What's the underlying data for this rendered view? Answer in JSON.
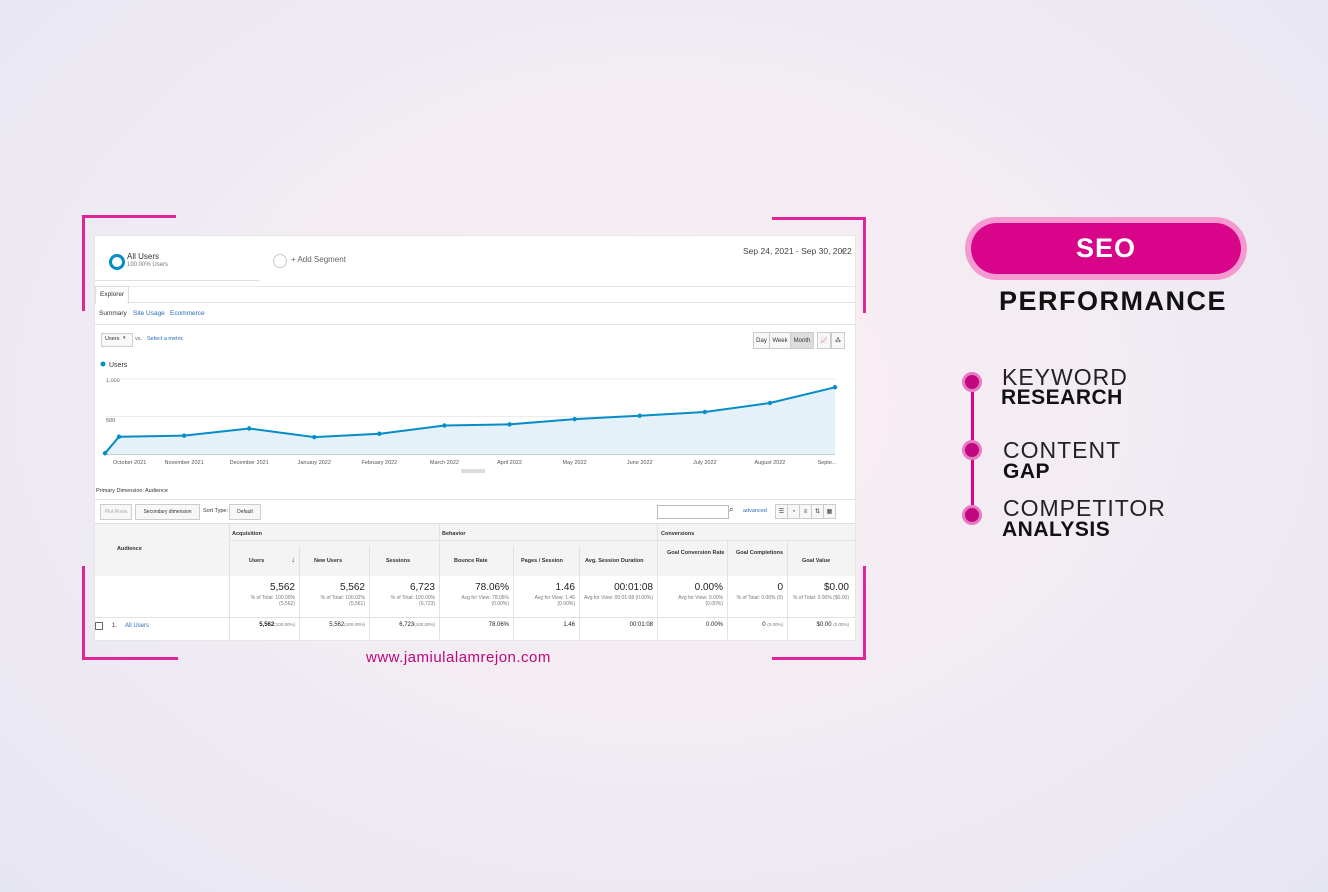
{
  "segment": {
    "all_users": "All Users",
    "all_users_pct": "100.00% Users",
    "add_segment": "+ Add Segment",
    "date_range": "Sep 24, 2021 - Sep 30, 2022"
  },
  "tabs": {
    "explorer": "Explorer"
  },
  "subtabs": [
    "Summary",
    "Site Usage",
    "Ecommerce"
  ],
  "metric_row": {
    "metric": "Users",
    "vs": "vs.",
    "select_metric": "Select a metric"
  },
  "granularity": [
    "Day",
    "Week",
    "Month"
  ],
  "chart_data": {
    "type": "line",
    "legend": "Users",
    "y_ticks": [
      "1,000",
      "500"
    ],
    "ylim": [
      0,
      1100
    ],
    "categories": [
      "October 2021",
      "November 2021",
      "December 2021",
      "January 2022",
      "February 2022",
      "March 2022",
      "April 2022",
      "May 2022",
      "June 2022",
      "July 2022",
      "August 2022",
      "Septe..."
    ],
    "values": [
      230,
      245,
      340,
      225,
      270,
      380,
      395,
      465,
      510,
      560,
      680,
      890
    ],
    "start_value": 10,
    "color": "#058dc7",
    "fill": "#e4f1f9"
  },
  "table_controls": {
    "primary_dimension_label": "Primary Dimension:",
    "primary_dimension_value": "Audience",
    "plot_rows": "Plot Rows",
    "secondary_dimension": "Secondary dimension",
    "sort_type_label": "Sort Type:",
    "sort_type_value": "Default",
    "advanced": "advanced"
  },
  "table": {
    "groups": [
      "Acquisition",
      "Behavior",
      "Conversions"
    ],
    "audience_header": "Audience",
    "headers": [
      "Users",
      "New Users",
      "Sessions",
      "Bounce Rate",
      "Pages / Session",
      "Avg. Session Duration",
      "Goal Conversion Rate",
      "Goal Completions",
      "Goal Value"
    ],
    "totals": [
      "5,562",
      "5,562",
      "6,723",
      "78.06%",
      "1.46",
      "00:01:08",
      "0.00%",
      "0",
      "$0.00"
    ],
    "totals_sub": [
      "% of Total: 100.00% (5,562)",
      "% of Total: 100.02% (5,561)",
      "% of Total: 100.00% (6,723)",
      "Avg for View: 78.06% (0.00%)",
      "Avg for View: 1.46 (0.00%)",
      "Avg for View: 00:01:08 (0.00%)",
      "Avg for View: 0.00% (0.00%)",
      "% of Total: 0.00% (0)",
      "% of Total: 0.00% ($0.00)"
    ],
    "row": {
      "index": "1.",
      "label": "All Users",
      "values": [
        "5,562",
        "5,562",
        "6,723",
        "78.06%",
        "1.46",
        "00:01:08",
        "0.00%",
        "0",
        "$0.00"
      ],
      "pct": [
        "(100.00%)",
        "(100.00%)",
        "(100.00%)",
        "",
        "",
        "",
        "",
        "(0.00%)",
        "(0.00%)"
      ]
    }
  },
  "website": "www.jamiulalamrejon.com",
  "badge": {
    "title": "SEO",
    "subtitle": "PERFORMANCE"
  },
  "list": [
    {
      "top": "KEYWORD",
      "bottom": "RESEARCH"
    },
    {
      "top": "CONTENT",
      "bottom": "GAP"
    },
    {
      "top": "COMPETITOR",
      "bottom": "ANALYSIS"
    }
  ],
  "colors": {
    "accent": "#d8058a",
    "accent_light": "#f59ad0",
    "link": "#2a6bbf"
  }
}
